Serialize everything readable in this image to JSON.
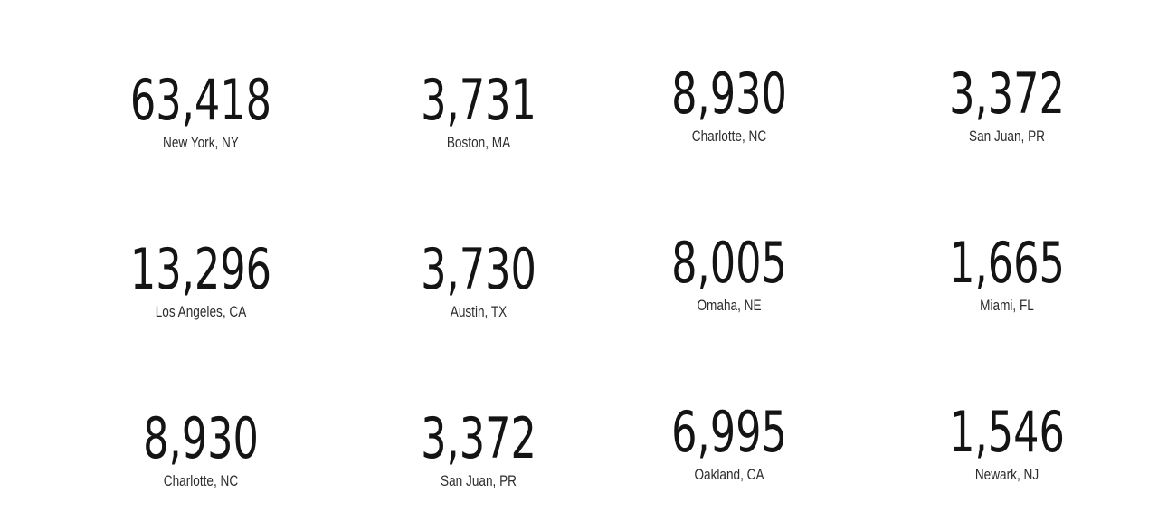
{
  "stats": [
    {
      "value": "63,418",
      "label": "New York, NY"
    },
    {
      "value": "3,731",
      "label": "Boston, MA"
    },
    {
      "value": "8,930",
      "label": "Charlotte, NC"
    },
    {
      "value": "3,372",
      "label": "San Juan, PR"
    },
    {
      "value": "13,296",
      "label": "Los Angeles, CA"
    },
    {
      "value": "3,730",
      "label": "Austin, TX"
    },
    {
      "value": "8,005",
      "label": "Omaha, NE"
    },
    {
      "value": "1,665",
      "label": "Miami, FL"
    },
    {
      "value": "8,930",
      "label": "Charlotte, NC"
    },
    {
      "value": "3,372",
      "label": "San Juan, PR"
    },
    {
      "value": "6,995",
      "label": "Oakland, CA"
    },
    {
      "value": "1,546",
      "label": "Newark, NJ"
    }
  ]
}
